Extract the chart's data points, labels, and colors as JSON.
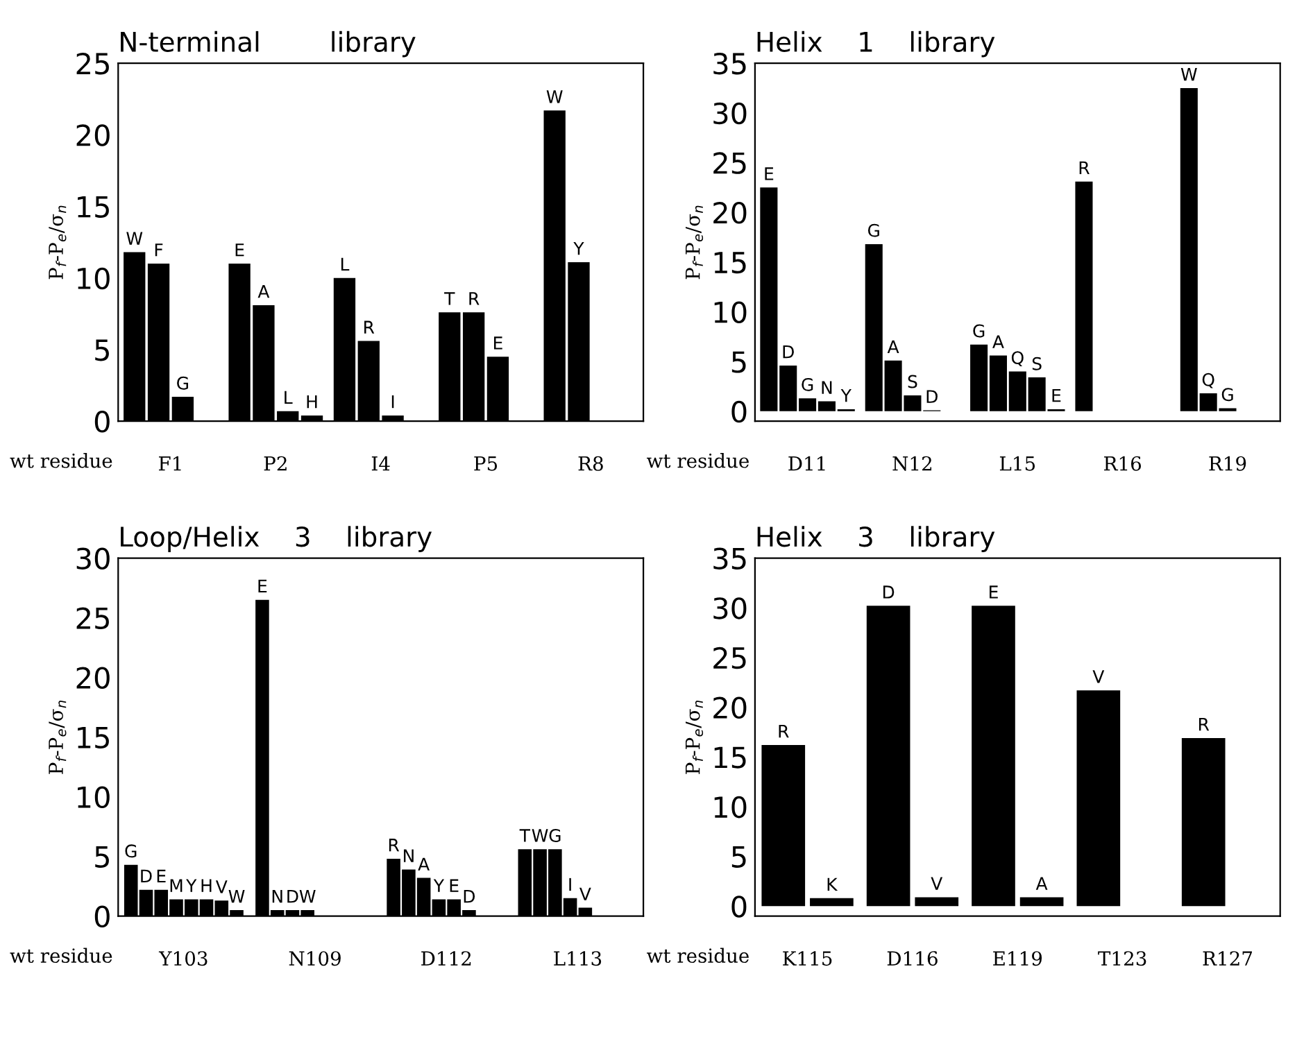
{
  "chart_data": [
    {
      "type": "bar",
      "title": "N-terminal        library",
      "ylabel": "P$_{f}$-P$_{e}$/σ$_{n}$",
      "annotations": [
        "wt residue"
      ],
      "categories": [
        "F1",
        "P2",
        "I4",
        "P5",
        "R8"
      ],
      "ylim": [
        0,
        25
      ],
      "yticks": [
        0,
        5,
        10,
        15,
        20,
        25
      ],
      "series": [
        {
          "color": "#000000",
          "values": [
            11.8,
            11,
            10,
            7.6,
            21.7
          ],
          "value_labels": [
            "W",
            "E",
            "L",
            "T",
            "W"
          ]
        },
        {
          "color": "#000000",
          "values": [
            11,
            8.1,
            5.6,
            7.6,
            11.1
          ],
          "value_labels": [
            "F",
            "A",
            "R",
            "R",
            "Y"
          ]
        },
        {
          "color": "#000000",
          "values": [
            1.7,
            0.7,
            0.4,
            4.5,
            null
          ],
          "value_labels": [
            "G",
            "L",
            "I",
            "E",
            null
          ]
        },
        {
          "color": "#000000",
          "values": [
            null,
            0.4,
            null,
            null,
            null
          ],
          "value_labels": [
            null,
            "H",
            null,
            null,
            null
          ]
        }
      ]
    },
    {
      "type": "bar",
      "title": "Helix    1    library",
      "ylabel": "P$_{f}$-P$_{e}$/σ$_{n}$",
      "annotations": [
        "wt residue"
      ],
      "categories": [
        "D11",
        "N12",
        "L15",
        "R16",
        "R19"
      ],
      "ylim": [
        -1,
        35
      ],
      "yticks": [
        0,
        5,
        10,
        15,
        20,
        25,
        30,
        35
      ],
      "series": [
        {
          "color": "#000000",
          "values": [
            22.5,
            16.8,
            6.7,
            23.1,
            32.5
          ],
          "value_labels": [
            "E",
            "G",
            "G",
            "R",
            "W"
          ]
        },
        {
          "color": "#000000",
          "values": [
            4.6,
            5.1,
            5.6,
            null,
            1.8
          ],
          "value_labels": [
            "D",
            "A",
            "A",
            null,
            "Q"
          ]
        },
        {
          "color": "#000000",
          "values": [
            1.3,
            1.6,
            4.0,
            null,
            0.3
          ],
          "value_labels": [
            "G",
            "S",
            "Q",
            null,
            "G"
          ]
        },
        {
          "color": "#000000",
          "values": [
            1.0,
            0.1,
            3.4,
            null,
            null
          ],
          "value_labels": [
            "N",
            "D",
            "S",
            null,
            null
          ]
        },
        {
          "color": "#000000",
          "values": [
            0.2,
            null,
            0.2,
            null,
            null
          ],
          "value_labels": [
            "Y",
            null,
            "E",
            null,
            null
          ]
        }
      ]
    },
    {
      "type": "bar",
      "title": "Loop/Helix    3    library",
      "ylabel": "P$_{f}$-P$_{e}$/σ$_{n}$",
      "annotations": [
        "wt residue"
      ],
      "categories": [
        "Y103",
        "N109",
        "D112",
        "L113"
      ],
      "ylim": [
        0,
        30
      ],
      "yticks": [
        0,
        5,
        10,
        15,
        20,
        25,
        30
      ],
      "series": [
        {
          "color": "#000000",
          "values": [
            4.3,
            26.5,
            4.8,
            5.6
          ],
          "value_labels": [
            "G",
            "E",
            "R",
            "T"
          ]
        },
        {
          "color": "#000000",
          "values": [
            2.2,
            0.5,
            3.9,
            5.6
          ],
          "value_labels": [
            "D",
            "N",
            "N",
            "W"
          ]
        },
        {
          "color": "#000000",
          "values": [
            2.2,
            0.5,
            3.2,
            5.6
          ],
          "value_labels": [
            "E",
            "D",
            "A",
            "G"
          ]
        },
        {
          "color": "#000000",
          "values": [
            1.4,
            0.5,
            1.4,
            1.5
          ],
          "value_labels": [
            "M",
            "W",
            "Y",
            "I"
          ]
        },
        {
          "color": "#000000",
          "values": [
            1.4,
            null,
            1.4,
            0.7
          ],
          "value_labels": [
            "Y",
            null,
            "E",
            "V"
          ]
        },
        {
          "color": "#000000",
          "values": [
            1.4,
            null,
            0.5,
            null
          ],
          "value_labels": [
            "H",
            null,
            "D",
            null
          ]
        },
        {
          "color": "#000000",
          "values": [
            1.3,
            null,
            null,
            null
          ],
          "value_labels": [
            "V",
            null,
            null,
            null
          ]
        },
        {
          "color": "#000000",
          "values": [
            0.5,
            null,
            null,
            null
          ],
          "value_labels": [
            "W",
            null,
            null,
            null
          ]
        }
      ]
    },
    {
      "type": "bar",
      "title": "Helix    3    library",
      "ylabel": "P$_{f}$-P$_{e}$/σ$_{n}$",
      "annotations": [
        "wt residue"
      ],
      "categories": [
        "K115",
        "D116",
        "E119",
        "T123",
        "R127"
      ],
      "ylim": [
        -1,
        35
      ],
      "yticks": [
        0,
        5,
        10,
        15,
        20,
        25,
        30,
        35
      ],
      "series": [
        {
          "color": "#000000",
          "values": [
            16.2,
            30.2,
            30.2,
            21.7,
            16.9
          ],
          "value_labels": [
            "R",
            "D",
            "E",
            "V",
            "R"
          ]
        },
        {
          "color": "#000000",
          "values": [
            0.8,
            0.9,
            0.9,
            null,
            null
          ],
          "value_labels": [
            "K",
            "V",
            "A",
            null,
            null
          ]
        }
      ]
    }
  ]
}
